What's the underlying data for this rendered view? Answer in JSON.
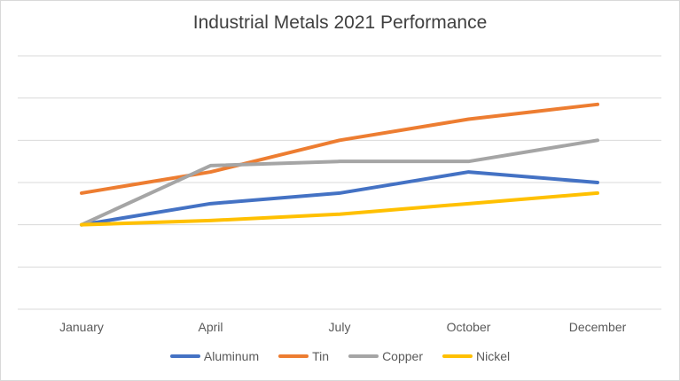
{
  "chart_data": {
    "type": "line",
    "title": "Industrial Metals 2021 Performance",
    "categories": [
      "January",
      "April",
      "July",
      "October",
      "December"
    ],
    "ylim": [
      0,
      6
    ],
    "grid": true,
    "legend": "bottom",
    "series": [
      {
        "name": "Aluminum",
        "color": "#4472C4",
        "values": [
          2.0,
          2.5,
          2.75,
          3.25,
          3.0
        ]
      },
      {
        "name": "Tin",
        "color": "#ED7D31",
        "values": [
          2.75,
          3.25,
          4.0,
          4.5,
          4.85
        ]
      },
      {
        "name": "Copper",
        "color": "#A5A5A5",
        "values": [
          2.0,
          3.4,
          3.5,
          3.5,
          4.0
        ]
      },
      {
        "name": "Nickel",
        "color": "#FFC000",
        "values": [
          2.0,
          2.1,
          2.25,
          2.5,
          2.75
        ]
      }
    ]
  }
}
